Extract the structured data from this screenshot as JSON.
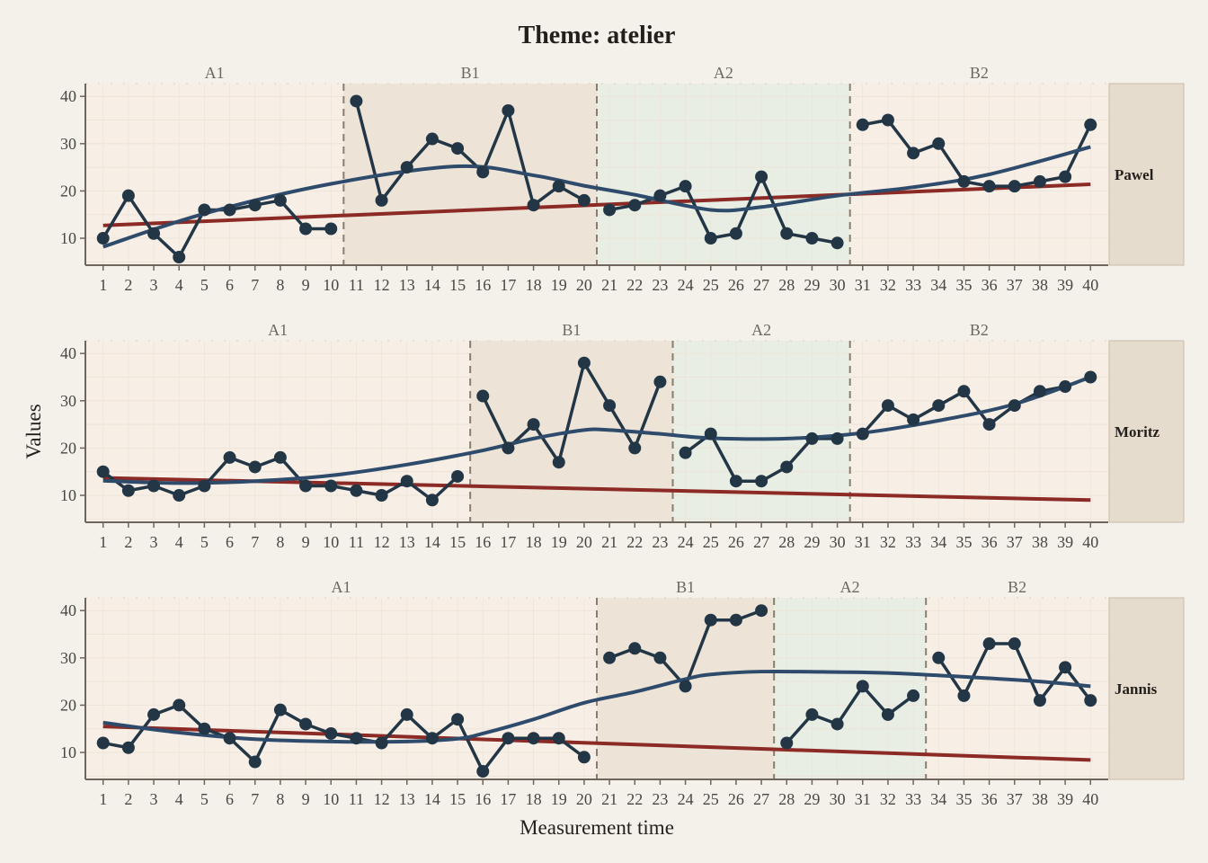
{
  "chart_data": {
    "type": "line",
    "title": "Theme: atelier",
    "xlabel": "Measurement time",
    "ylabel": "Values",
    "ylim": [
      4.3,
      42.7
    ],
    "xlim": [
      0.3,
      40.7
    ],
    "yticks": [
      10,
      20,
      30,
      40
    ],
    "xticks": [
      1,
      2,
      3,
      4,
      5,
      6,
      7,
      8,
      9,
      10,
      11,
      12,
      13,
      14,
      15,
      16,
      17,
      18,
      19,
      20,
      21,
      22,
      23,
      24,
      25,
      26,
      27,
      28,
      29,
      30,
      31,
      32,
      33,
      34,
      35,
      36,
      37,
      38,
      39,
      40
    ],
    "grid": true,
    "colors": {
      "background": "#f4f0ea",
      "panel": "#f6efe7",
      "phase_A1": "#f7efe6",
      "phase_B1": "#ede3d7",
      "phase_A2": "#e8eee4",
      "phase_B2": "#f7efe6",
      "data_line": "#233646",
      "loess": "#2f4b6b",
      "trend": "#8c2a26",
      "strip": "#e6dccd",
      "phase_line": "#8a7d70"
    },
    "panels": [
      {
        "name": "Pawel",
        "phases": [
          {
            "label": "A1",
            "start": 1,
            "end": 10
          },
          {
            "label": "B1",
            "start": 11,
            "end": 20
          },
          {
            "label": "A2",
            "start": 21,
            "end": 30
          },
          {
            "label": "B2",
            "start": 31,
            "end": 40
          }
        ],
        "values": [
          10,
          19,
          11,
          6,
          16,
          16,
          17,
          18,
          12,
          12,
          39,
          18,
          25,
          31,
          29,
          24,
          37,
          17,
          21,
          18,
          16,
          17,
          19,
          21,
          10,
          11,
          23,
          11,
          10,
          9,
          34,
          35,
          28,
          30,
          22,
          21,
          21,
          22,
          23,
          34
        ],
        "trend": [
          12.7,
          21.4
        ],
        "loess": [
          [
            1,
            8.2
          ],
          [
            5,
            15.2
          ],
          [
            10,
            21.5
          ],
          [
            15,
            25.2
          ],
          [
            18,
            23.3
          ],
          [
            20,
            21.1
          ],
          [
            22,
            19.2
          ],
          [
            25,
            16.0
          ],
          [
            27,
            16.6
          ],
          [
            30,
            19.0
          ],
          [
            33,
            20.8
          ],
          [
            36,
            23.5
          ],
          [
            40,
            29.3
          ]
        ]
      },
      {
        "name": "Moritz",
        "phases": [
          {
            "label": "A1",
            "start": 1,
            "end": 15
          },
          {
            "label": "B1",
            "start": 16,
            "end": 23
          },
          {
            "label": "A2",
            "start": 24,
            "end": 30
          },
          {
            "label": "B2",
            "start": 31,
            "end": 40
          }
        ],
        "values": [
          15,
          11,
          12,
          10,
          12,
          18,
          16,
          18,
          12,
          12,
          11,
          10,
          13,
          9,
          14,
          31,
          20,
          25,
          17,
          38,
          29,
          20,
          34,
          19,
          23,
          13,
          13,
          16,
          22,
          22,
          23,
          29,
          26,
          29,
          32,
          25,
          29,
          32,
          33,
          35
        ],
        "trend": [
          13.7,
          9.0
        ],
        "loess": [
          [
            1,
            13.1
          ],
          [
            4,
            12.6
          ],
          [
            7,
            13.0
          ],
          [
            10,
            14.2
          ],
          [
            13,
            16.5
          ],
          [
            16,
            19.5
          ],
          [
            18,
            22.0
          ],
          [
            20,
            23.8
          ],
          [
            21,
            23.8
          ],
          [
            23,
            23.0
          ],
          [
            25,
            22.1
          ],
          [
            28,
            22.0
          ],
          [
            31,
            23.2
          ],
          [
            34,
            25.8
          ],
          [
            37,
            29.3
          ],
          [
            40,
            35.0
          ]
        ]
      },
      {
        "name": "Jannis",
        "phases": [
          {
            "label": "A1",
            "start": 1,
            "end": 20
          },
          {
            "label": "B1",
            "start": 21,
            "end": 27
          },
          {
            "label": "A2",
            "start": 28,
            "end": 33
          },
          {
            "label": "B2",
            "start": 34,
            "end": 40
          }
        ],
        "values": [
          12,
          11,
          18,
          20,
          15,
          13,
          8,
          19,
          16,
          14,
          13,
          12,
          18,
          13,
          17,
          6,
          13,
          13,
          13,
          9,
          30,
          32,
          30,
          24,
          38,
          38,
          40,
          12,
          18,
          16,
          24,
          18,
          22,
          30,
          22,
          33,
          33,
          21,
          28,
          21
        ],
        "trend": [
          15.5,
          8.4
        ],
        "loess": [
          [
            1,
            16.3
          ],
          [
            4,
            14.2
          ],
          [
            7,
            12.8
          ],
          [
            10,
            12.3
          ],
          [
            13,
            12.3
          ],
          [
            15,
            12.9
          ],
          [
            16,
            14.0
          ],
          [
            18,
            17.0
          ],
          [
            20,
            20.5
          ],
          [
            22,
            22.8
          ],
          [
            24,
            25.5
          ],
          [
            25,
            26.5
          ],
          [
            27,
            27.1
          ],
          [
            30,
            27.0
          ],
          [
            32,
            26.8
          ],
          [
            35,
            26.0
          ],
          [
            38,
            25.0
          ],
          [
            40,
            24.0
          ]
        ]
      }
    ]
  }
}
